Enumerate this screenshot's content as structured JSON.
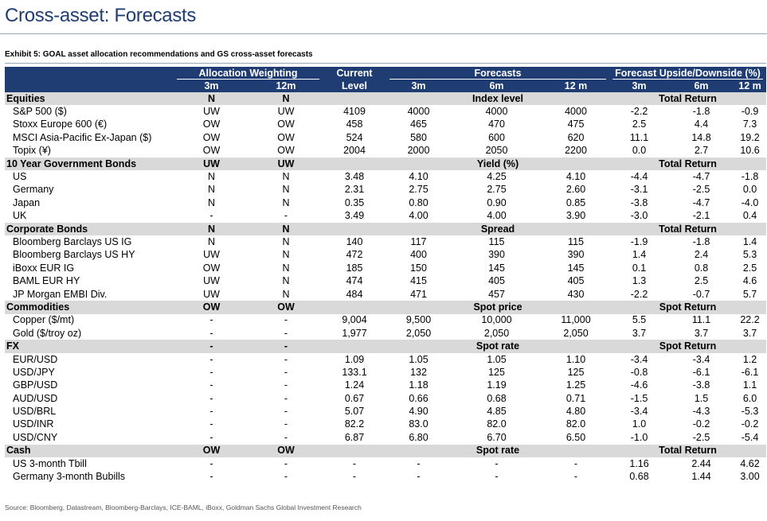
{
  "title": "Cross-asset: Forecasts",
  "exhibit": "Exhibit 5: GOAL asset allocation recommendations and GS cross-asset forecasts",
  "header": {
    "alloc_group": "Allocation Weighting",
    "current_top": "Current",
    "forecasts_group": "Forecasts",
    "upside_group": "Forecast Upside/Downside (%)",
    "alloc_3m": "3m",
    "alloc_12m": "12m",
    "current_bottom": "Level",
    "f_3m": "3m",
    "f_6m": "6m",
    "f_12m": "12 m",
    "u_3m": "3m",
    "u_6m": "6m",
    "u_12m": "12 m"
  },
  "sections": [
    {
      "name": "Equities",
      "w3": "N",
      "w12": "N",
      "metric": "Index level",
      "ret": "Total Return",
      "rows": [
        {
          "name": "S&P 500 ($)",
          "w3": "UW",
          "w12": "UW",
          "cur": "4109",
          "f3": "4000",
          "f6": "4000",
          "f12": "4000",
          "u3": "-2.2",
          "u6": "-1.8",
          "u12": "-0.9"
        },
        {
          "name": "Stoxx Europe 600 (€)",
          "w3": "OW",
          "w12": "OW",
          "cur": "458",
          "f3": "465",
          "f6": "470",
          "f12": "475",
          "u3": "2.5",
          "u6": "4.4",
          "u12": "7.3"
        },
        {
          "name": "MSCI Asia-Pacific Ex-Japan ($)",
          "w3": "OW",
          "w12": "OW",
          "cur": "524",
          "f3": "580",
          "f6": "600",
          "f12": "620",
          "u3": "11.1",
          "u6": "14.8",
          "u12": "19.2"
        },
        {
          "name": "Topix (¥)",
          "w3": "OW",
          "w12": "OW",
          "cur": "2004",
          "f3": "2000",
          "f6": "2050",
          "f12": "2200",
          "u3": "0.0",
          "u6": "2.7",
          "u12": "10.6"
        }
      ]
    },
    {
      "name": "10 Year Government Bonds",
      "w3": "UW",
      "w12": "UW",
      "metric": "Yield (%)",
      "ret": "Total Return",
      "rows": [
        {
          "name": "US",
          "w3": "N",
          "w12": "N",
          "cur": "3.48",
          "f3": "4.10",
          "f6": "4.25",
          "f12": "4.10",
          "u3": "-4.4",
          "u6": "-4.7",
          "u12": "-1.8"
        },
        {
          "name": "Germany",
          "w3": "N",
          "w12": "N",
          "cur": "2.31",
          "f3": "2.75",
          "f6": "2.75",
          "f12": "2.60",
          "u3": "-3.1",
          "u6": "-2.5",
          "u12": "0.0"
        },
        {
          "name": "Japan",
          "w3": "N",
          "w12": "N",
          "cur": "0.35",
          "f3": "0.80",
          "f6": "0.90",
          "f12": "0.85",
          "u3": "-3.8",
          "u6": "-4.7",
          "u12": "-4.0"
        },
        {
          "name": "UK",
          "w3": "-",
          "w12": "-",
          "cur": "3.49",
          "f3": "4.00",
          "f6": "4.00",
          "f12": "3.90",
          "u3": "-3.0",
          "u6": "-2.1",
          "u12": "0.4"
        }
      ]
    },
    {
      "name": "Corporate Bonds",
      "w3": "N",
      "w12": "N",
      "metric": "Spread",
      "ret": "Total Return",
      "rows": [
        {
          "name": "Bloomberg Barclays US IG",
          "w3": "N",
          "w12": "N",
          "cur": "140",
          "f3": "117",
          "f6": "115",
          "f12": "115",
          "u3": "-1.9",
          "u6": "-1.8",
          "u12": "1.4"
        },
        {
          "name": "Bloomberg Barclays US HY",
          "w3": "UW",
          "w12": "N",
          "cur": "472",
          "f3": "400",
          "f6": "390",
          "f12": "390",
          "u3": "1.4",
          "u6": "2.4",
          "u12": "5.3"
        },
        {
          "name": "iBoxx EUR IG",
          "w3": "OW",
          "w12": "N",
          "cur": "185",
          "f3": "150",
          "f6": "145",
          "f12": "145",
          "u3": "0.1",
          "u6": "0.8",
          "u12": "2.5"
        },
        {
          "name": "BAML EUR HY",
          "w3": "UW",
          "w12": "N",
          "cur": "474",
          "f3": "415",
          "f6": "405",
          "f12": "405",
          "u3": "1.3",
          "u6": "2.5",
          "u12": "4.6"
        },
        {
          "name": "JP Morgan EMBI Div.",
          "w3": "UW",
          "w12": "N",
          "cur": "484",
          "f3": "471",
          "f6": "457",
          "f12": "430",
          "u3": "-2.2",
          "u6": "-0.7",
          "u12": "5.7"
        }
      ]
    },
    {
      "name": "Commodities",
      "w3": "OW",
      "w12": "OW",
      "metric": "Spot price",
      "ret": "Spot Return",
      "rows": [
        {
          "name": "Copper ($/mt)",
          "w3": "-",
          "w12": "-",
          "cur": "9,004",
          "f3": "9,500",
          "f6": "10,000",
          "f12": "11,000",
          "u3": "5.5",
          "u6": "11.1",
          "u12": "22.2"
        },
        {
          "name": "Gold ($/troy oz)",
          "w3": "-",
          "w12": "-",
          "cur": "1,977",
          "f3": "2,050",
          "f6": "2,050",
          "f12": "2,050",
          "u3": "3.7",
          "u6": "3.7",
          "u12": "3.7"
        }
      ]
    },
    {
      "name": "FX",
      "w3": "-",
      "w12": "-",
      "metric": "Spot rate",
      "ret": "Spot Return",
      "rows": [
        {
          "name": "EUR/USD",
          "w3": "-",
          "w12": "-",
          "cur": "1.09",
          "f3": "1.05",
          "f6": "1.05",
          "f12": "1.10",
          "u3": "-3.4",
          "u6": "-3.4",
          "u12": "1.2"
        },
        {
          "name": "USD/JPY",
          "w3": "-",
          "w12": "-",
          "cur": "133.1",
          "f3": "132",
          "f6": "125",
          "f12": "125",
          "u3": "-0.8",
          "u6": "-6.1",
          "u12": "-6.1"
        },
        {
          "name": "GBP/USD",
          "w3": "-",
          "w12": "-",
          "cur": "1.24",
          "f3": "1.18",
          "f6": "1.19",
          "f12": "1.25",
          "u3": "-4.6",
          "u6": "-3.8",
          "u12": "1.1"
        },
        {
          "name": "AUD/USD",
          "w3": "-",
          "w12": "-",
          "cur": "0.67",
          "f3": "0.66",
          "f6": "0.68",
          "f12": "0.71",
          "u3": "-1.5",
          "u6": "1.5",
          "u12": "6.0"
        },
        {
          "name": "USD/BRL",
          "w3": "-",
          "w12": "-",
          "cur": "5.07",
          "f3": "4.90",
          "f6": "4.85",
          "f12": "4.80",
          "u3": "-3.4",
          "u6": "-4.3",
          "u12": "-5.3"
        },
        {
          "name": "USD/INR",
          "w3": "-",
          "w12": "-",
          "cur": "82.2",
          "f3": "83.0",
          "f6": "82.0",
          "f12": "82.0",
          "u3": "1.0",
          "u6": "-0.2",
          "u12": "-0.2"
        },
        {
          "name": "USD/CNY",
          "w3": "-",
          "w12": "-",
          "cur": "6.87",
          "f3": "6.80",
          "f6": "6.70",
          "f12": "6.50",
          "u3": "-1.0",
          "u6": "-2.5",
          "u12": "-5.4"
        }
      ]
    },
    {
      "name": "Cash",
      "w3": "OW",
      "w12": "OW",
      "metric": "Spot rate",
      "ret": "Total Return",
      "rows": [
        {
          "name": "US 3-month Tbill",
          "w3": "-",
          "w12": "-",
          "cur": "-",
          "f3": "-",
          "f6": "-",
          "f12": "-",
          "u3": "1.16",
          "u6": "2.44",
          "u12": "4.62"
        },
        {
          "name": "Germany 3-month Bubills",
          "w3": "-",
          "w12": "-",
          "cur": "-",
          "f3": "-",
          "f6": "-",
          "f12": "-",
          "u3": "0.68",
          "u6": "1.44",
          "u12": "3.00"
        }
      ]
    }
  ],
  "source": "Source: Bloomberg, Datastream, Bloomberg-Barclays, ICE-BAML, iBoxx, Goldman Sachs Global Investment Research"
}
